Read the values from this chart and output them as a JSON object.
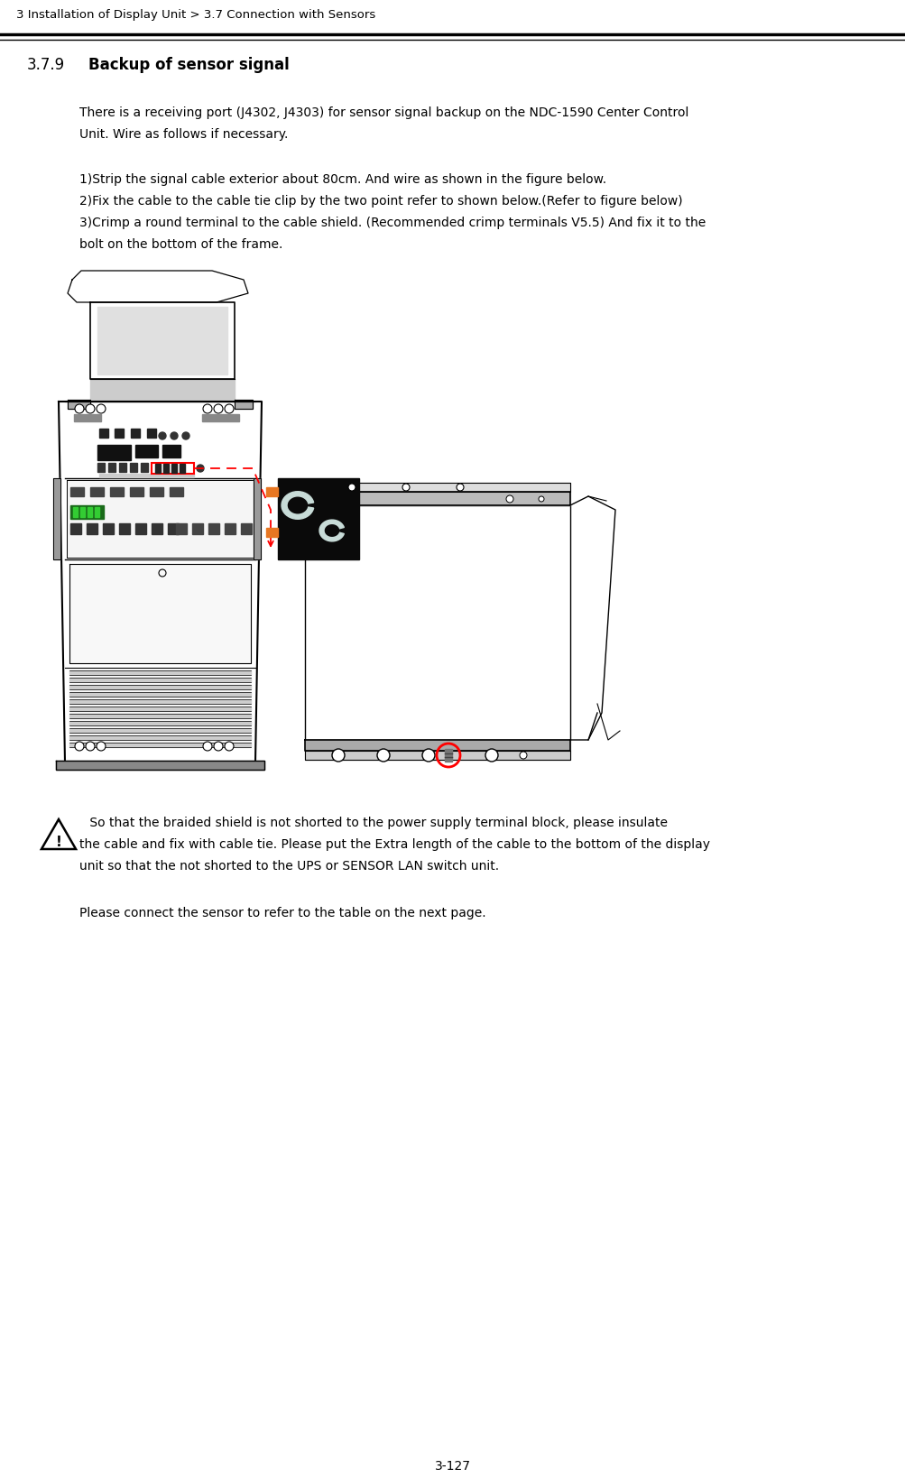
{
  "bg_color": "#ffffff",
  "header_text": "3 Installation of Display Unit > 3.7 Connection with Sensors",
  "header_fontsize": 9.5,
  "header_color": "#000000",
  "section_number": "3.7.9",
  "section_title": "Backup of sensor signal",
  "section_title_fontsize": 12,
  "body_text_fontsize": 10,
  "para1_line1": "There is a receiving port (J4302, J4303) for sensor signal backup on the NDC-1590 Center Control",
  "para1_line2": "Unit. Wire as follows if necessary.",
  "step1": "1)Strip the signal cable exterior about 80cm. And wire as shown in the figure below.",
  "step2": "2)Fix the cable to the cable tie clip by the two point refer to shown below.(Refer to figure below)",
  "step3_line1": "3)Crimp a round terminal to the cable shield. (Recommended crimp terminals V5.5) And fix it to the",
  "step3_line2": "bolt on the bottom of the frame.",
  "warning_line1": " So that the braided shield is not shorted to the power supply terminal block, please insulate",
  "warning_line2": "the cable and fix with cable tie. Please put the Extra length of the cable to the bottom of the display",
  "warning_line3": "unit so that the not shorted to the UPS or SENSOR LAN switch unit.",
  "footer_text": "Please connect the sensor to refer to the table on the next page.",
  "page_number": "3-127"
}
